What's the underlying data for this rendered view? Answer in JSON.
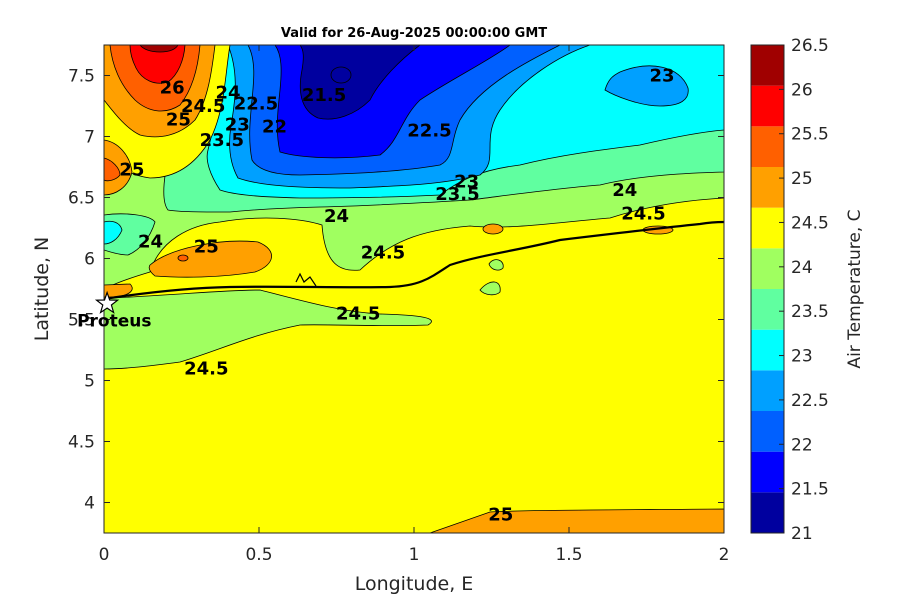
{
  "chart_data": {
    "type": "heatmap",
    "subtype": "filled-contour",
    "title": "Valid for 26-Aug-2025 00:00:00 GMT",
    "xlabel": "Longitude, E",
    "ylabel": "Latitude, N",
    "xlim": [
      0,
      2
    ],
    "ylim": [
      3.75,
      7.75
    ],
    "xticks": [
      "0",
      "0.5",
      "1",
      "1.5",
      "2"
    ],
    "yticks": [
      "4",
      "4.5",
      "5",
      "5.5",
      "6",
      "6.5",
      "7",
      "7.5"
    ],
    "colorbar": {
      "label": "Air Temperature, C",
      "levels": [
        21,
        21.5,
        22,
        22.5,
        23,
        23.5,
        24,
        24.5,
        25,
        25.5,
        26,
        26.5
      ],
      "tick_labels": [
        "21",
        "21.5",
        "22",
        "22.5",
        "23",
        "23.5",
        "24",
        "24.5",
        "25",
        "25.5",
        "26",
        "26.5"
      ],
      "colors": [
        "#00009f",
        "#0000ff",
        "#0060ff",
        "#00a0ff",
        "#00ffff",
        "#60ffa0",
        "#a0ff60",
        "#ffff00",
        "#ffa000",
        "#ff6000",
        "#ff0000",
        "#a00000"
      ]
    },
    "contour_labels": [
      {
        "text": "26",
        "x": 0.22,
        "y": 7.4
      },
      {
        "text": "25",
        "x": 0.24,
        "y": 7.14
      },
      {
        "text": "24.5",
        "x": 0.32,
        "y": 7.25
      },
      {
        "text": "24",
        "x": 0.4,
        "y": 7.36
      },
      {
        "text": "23.5",
        "x": 0.38,
        "y": 6.97
      },
      {
        "text": "23",
        "x": 0.43,
        "y": 7.1
      },
      {
        "text": "22.5",
        "x": 0.49,
        "y": 7.27
      },
      {
        "text": "22",
        "x": 0.55,
        "y": 7.08
      },
      {
        "text": "21.5",
        "x": 0.71,
        "y": 7.34
      },
      {
        "text": "22.5",
        "x": 1.05,
        "y": 7.05
      },
      {
        "text": "23",
        "x": 1.8,
        "y": 7.5
      },
      {
        "text": "23",
        "x": 1.17,
        "y": 6.63
      },
      {
        "text": "23.5",
        "x": 1.14,
        "y": 6.53
      },
      {
        "text": "24",
        "x": 0.75,
        "y": 6.35
      },
      {
        "text": "24",
        "x": 1.68,
        "y": 6.56
      },
      {
        "text": "24.5",
        "x": 1.74,
        "y": 6.37
      },
      {
        "text": "24.5",
        "x": 0.9,
        "y": 6.05
      },
      {
        "text": "24",
        "x": 0.15,
        "y": 6.14
      },
      {
        "text": "25",
        "x": 0.33,
        "y": 6.1
      },
      {
        "text": "25",
        "x": 0.09,
        "y": 6.73
      },
      {
        "text": "24.5",
        "x": 0.82,
        "y": 5.55
      },
      {
        "text": "24.5",
        "x": 0.33,
        "y": 5.1
      },
      {
        "text": "25",
        "x": 1.28,
        "y": 3.9
      }
    ],
    "markers": [
      {
        "label": "Proteus",
        "x": 0.01,
        "y": 5.63,
        "symbol": "star"
      }
    ]
  }
}
